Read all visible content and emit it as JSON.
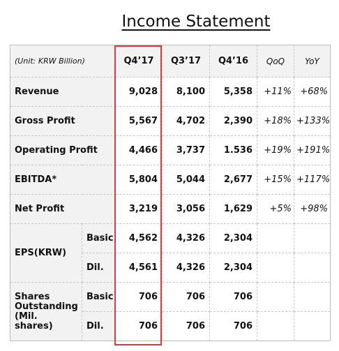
{
  "title": "Income Statement",
  "table": {
    "header": {
      "unit": "(Unit: KRW Billion)",
      "columns": [
        "Q4’17",
        "Q3’17",
        "Q4’16",
        "QoQ",
        "YoY"
      ]
    },
    "rows": [
      {
        "label": "Revenue",
        "values": [
          "9,028",
          "8,100",
          "5,358",
          "+11%",
          "+68%"
        ]
      },
      {
        "label": "Gross Profit",
        "values": [
          "5,567",
          "4,702",
          "2,390",
          "+18%",
          "+133%"
        ]
      },
      {
        "label": "Operating Profit",
        "values": [
          "4,466",
          "3,737",
          "1.536",
          "+19%",
          "+191%"
        ]
      },
      {
        "label": "EBITDA*",
        "values": [
          "5,804",
          "5,044",
          "2,677",
          "+15%",
          "+117%"
        ]
      },
      {
        "label": "Net Profit",
        "values": [
          "3,219",
          "3,056",
          "1,629",
          "+5%",
          "+98%"
        ]
      }
    ],
    "groups": [
      {
        "label": "EPS(KRW)",
        "rows": [
          {
            "label": "Basic",
            "values": [
              "4,562",
              "4,326",
              "2,304"
            ]
          },
          {
            "label": "Dil.",
            "values": [
              "4,561",
              "4,326",
              "2,304"
            ]
          }
        ]
      },
      {
        "label": "Shares Outstanding (Mil. shares)",
        "rows": [
          {
            "label": "Basic",
            "values": [
              "706",
              "706",
              "706"
            ]
          },
          {
            "label": "Dil.",
            "values": [
              "706",
              "706",
              "706"
            ]
          }
        ]
      }
    ]
  }
}
